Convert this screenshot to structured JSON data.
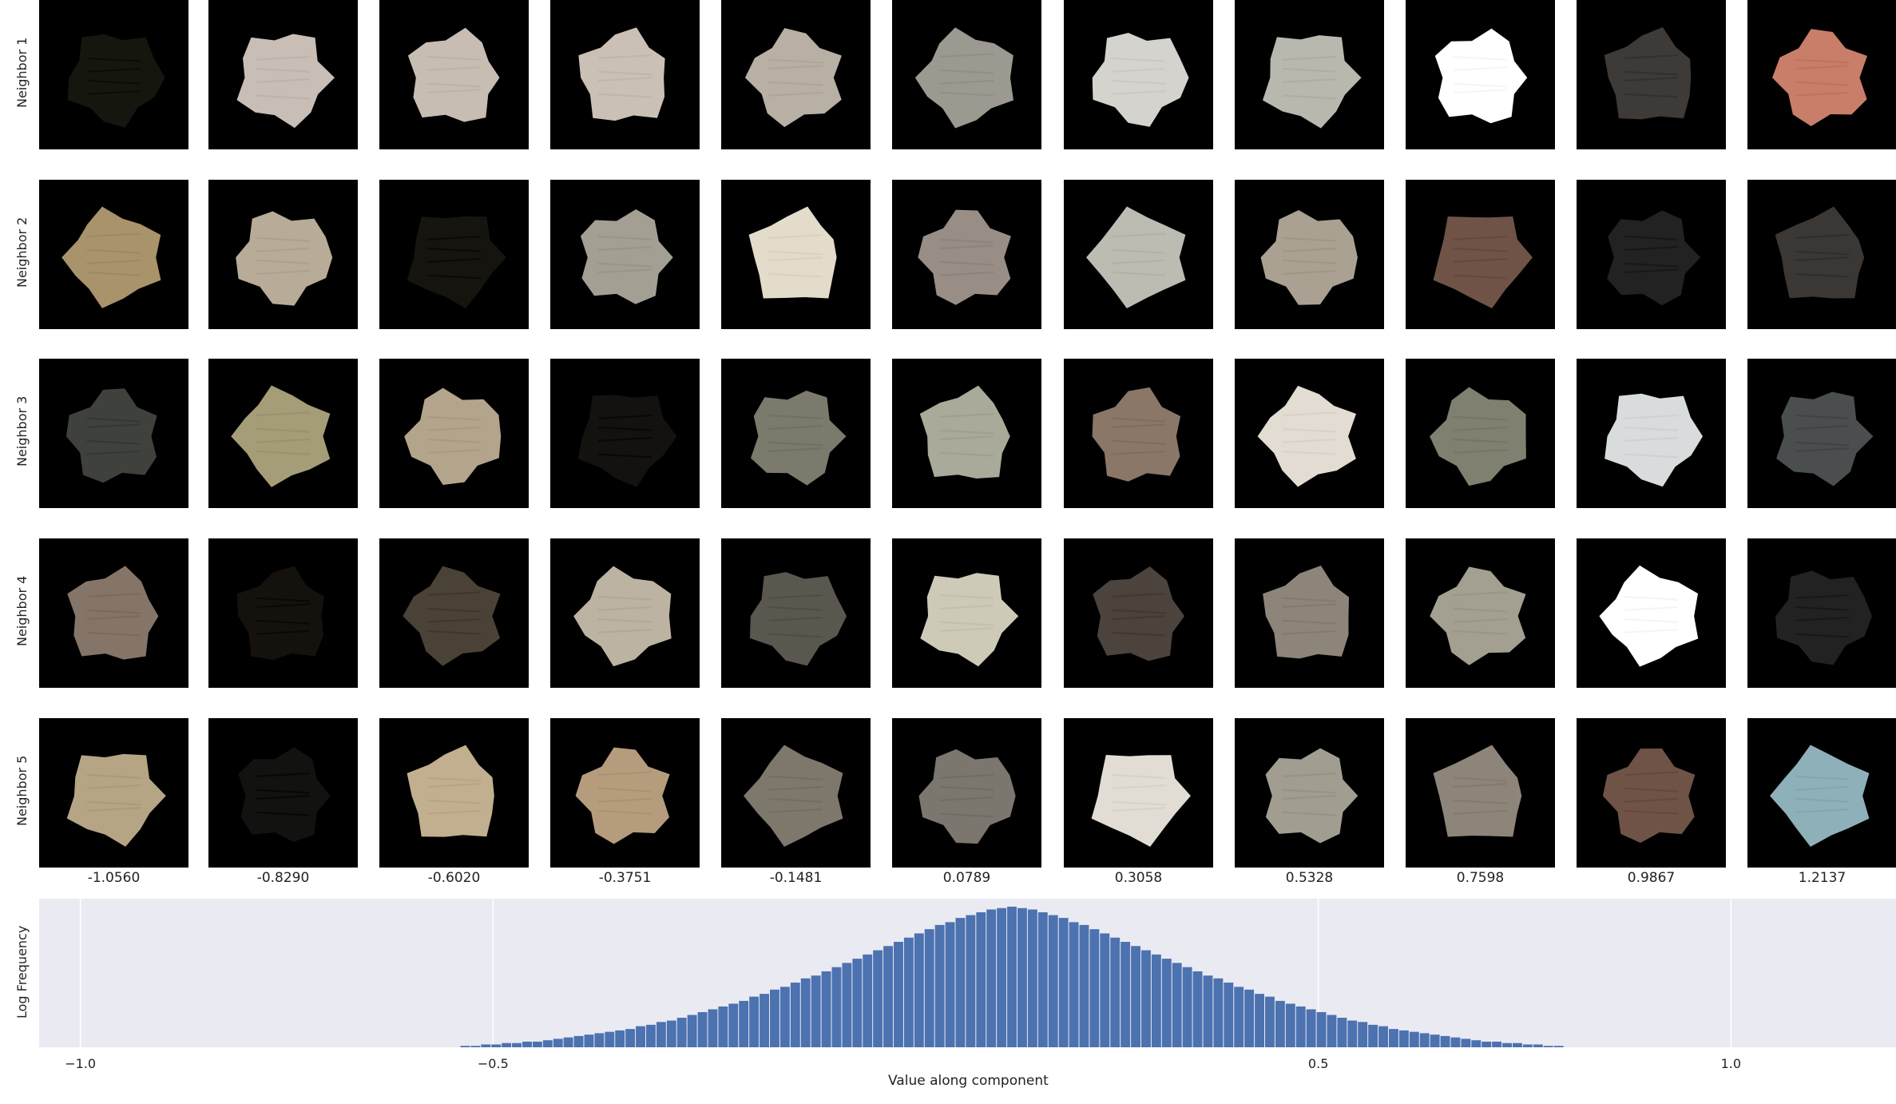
{
  "row_labels": [
    "Neighbor 1",
    "Neighbor 2",
    "Neighbor 3",
    "Neighbor 4",
    "Neighbor 5"
  ],
  "column_values": [
    "-1.0560",
    "-0.8290",
    "-0.6020",
    "-0.3751",
    "-0.1481",
    "0.0789",
    "0.3058",
    "0.5328",
    "0.7598",
    "0.9867",
    "1.2137"
  ],
  "tiles": [
    [
      {
        "icon": "dark-patch",
        "color": "#15170f"
      },
      {
        "icon": "beige-patch",
        "color": "#c8beb5"
      },
      {
        "icon": "beige-patch",
        "color": "#c8bdb3"
      },
      {
        "icon": "beige-patch",
        "color": "#cbc0b6"
      },
      {
        "icon": "beige-patch",
        "color": "#b8b0a4"
      },
      {
        "icon": "textured-patch",
        "color": "#9c9990"
      },
      {
        "icon": "textured-patch",
        "color": "#d4d3cd"
      },
      {
        "icon": "textured-patch",
        "color": "#b9b8ae"
      },
      {
        "icon": "white-patch",
        "color": "#ffffff"
      },
      {
        "icon": "dark-patch",
        "color": "#3e3a37"
      },
      {
        "icon": "colored-patch",
        "color": "#c97e6a"
      }
    ],
    [
      {
        "icon": "tan-patch",
        "color": "#a8936a"
      },
      {
        "icon": "beige-patch",
        "color": "#b8ac98"
      },
      {
        "icon": "dark-patch",
        "color": "#16140f"
      },
      {
        "icon": "textured-patch",
        "color": "#a39f93"
      },
      {
        "icon": "textured-patch",
        "color": "#e4dccb"
      },
      {
        "icon": "textured-patch",
        "color": "#988e86"
      },
      {
        "icon": "textured-patch",
        "color": "#bdbcb3"
      },
      {
        "icon": "beige-patch",
        "color": "#aaa193"
      },
      {
        "icon": "figure-patch",
        "color": "#6e5346"
      },
      {
        "icon": "dark-patch",
        "color": "#222"
      },
      {
        "icon": "dark-patch",
        "color": "#3a3735"
      }
    ],
    [
      {
        "icon": "dark-patch",
        "color": "#3f413d"
      },
      {
        "icon": "striped-patch",
        "color": "#a59d78"
      },
      {
        "icon": "beige-patch",
        "color": "#b3a58c"
      },
      {
        "icon": "dark-patch",
        "color": "#13120e"
      },
      {
        "icon": "grey-patch",
        "color": "#7c796d"
      },
      {
        "icon": "grey-patch",
        "color": "#a9aa99"
      },
      {
        "icon": "brown-patch",
        "color": "#8a7767"
      },
      {
        "icon": "beige-patch",
        "color": "#e2dcd2"
      },
      {
        "icon": "grey-patch",
        "color": "#7f806f"
      },
      {
        "icon": "light-patch",
        "color": "#d9dcdc"
      },
      {
        "icon": "device-patch",
        "color": "#4a4e4f"
      }
    ],
    [
      {
        "icon": "brown-patch",
        "color": "#857568"
      },
      {
        "icon": "dark-patch",
        "color": "#15120d"
      },
      {
        "icon": "brown-patch",
        "color": "#4a4236"
      },
      {
        "icon": "beige-patch",
        "color": "#bdb3a3"
      },
      {
        "icon": "grey-patch",
        "color": "#5a574f"
      },
      {
        "icon": "light-patch",
        "color": "#cdcab8"
      },
      {
        "icon": "brown-patch",
        "color": "#4c433d"
      },
      {
        "icon": "bag-patch",
        "color": "#8e857a"
      },
      {
        "icon": "textured-patch",
        "color": "#a3a092"
      },
      {
        "icon": "white-patch",
        "color": "#ffffff"
      },
      {
        "icon": "dark-patch",
        "color": "#222"
      }
    ],
    [
      {
        "icon": "tan-patch",
        "color": "#b5a585"
      },
      {
        "icon": "dark-patch",
        "color": "#121210"
      },
      {
        "icon": "beige-patch",
        "color": "#c2af90"
      },
      {
        "icon": "shelf-patch",
        "color": "#b49c7d"
      },
      {
        "icon": "grey-patch",
        "color": "#7e786c"
      },
      {
        "icon": "textured-patch",
        "color": "#7c776e"
      },
      {
        "icon": "light-patch",
        "color": "#e2ddd4"
      },
      {
        "icon": "textured-patch",
        "color": "#a19d90"
      },
      {
        "icon": "bag-patch",
        "color": "#8e857a"
      },
      {
        "icon": "figure-patch",
        "color": "#6e5346"
      },
      {
        "icon": "colored-patch",
        "color": "#8eb0b9"
      }
    ]
  ],
  "chart_data": {
    "type": "bar",
    "xlabel": "Value along component",
    "ylabel": "Log Frequency",
    "xlim": [
      -1.05,
      1.2
    ],
    "xticks": [
      -1.0,
      -0.5,
      0.5,
      1.0
    ],
    "xtick_labels": [
      "−1.0",
      "−0.5",
      "0.5",
      "1.0"
    ],
    "grid": true,
    "bar_color": "#4c72b0",
    "bin_width": 0.0125,
    "bins_start": -0.54,
    "log_frequency": [
      0.01,
      0.01,
      0.02,
      0.02,
      0.03,
      0.03,
      0.04,
      0.04,
      0.05,
      0.06,
      0.07,
      0.08,
      0.09,
      0.1,
      0.11,
      0.12,
      0.13,
      0.15,
      0.16,
      0.18,
      0.19,
      0.21,
      0.23,
      0.25,
      0.27,
      0.29,
      0.31,
      0.33,
      0.36,
      0.38,
      0.41,
      0.43,
      0.46,
      0.49,
      0.51,
      0.54,
      0.57,
      0.6,
      0.63,
      0.66,
      0.69,
      0.72,
      0.75,
      0.78,
      0.81,
      0.84,
      0.87,
      0.89,
      0.92,
      0.94,
      0.96,
      0.98,
      0.99,
      1.0,
      0.99,
      0.98,
      0.96,
      0.94,
      0.92,
      0.89,
      0.87,
      0.84,
      0.81,
      0.78,
      0.75,
      0.72,
      0.69,
      0.66,
      0.63,
      0.6,
      0.57,
      0.54,
      0.51,
      0.49,
      0.46,
      0.43,
      0.41,
      0.38,
      0.36,
      0.33,
      0.31,
      0.29,
      0.27,
      0.25,
      0.23,
      0.21,
      0.19,
      0.18,
      0.16,
      0.15,
      0.13,
      0.12,
      0.11,
      0.1,
      0.09,
      0.08,
      0.07,
      0.06,
      0.05,
      0.04,
      0.04,
      0.03,
      0.03,
      0.02,
      0.02,
      0.01,
      0.01
    ]
  }
}
